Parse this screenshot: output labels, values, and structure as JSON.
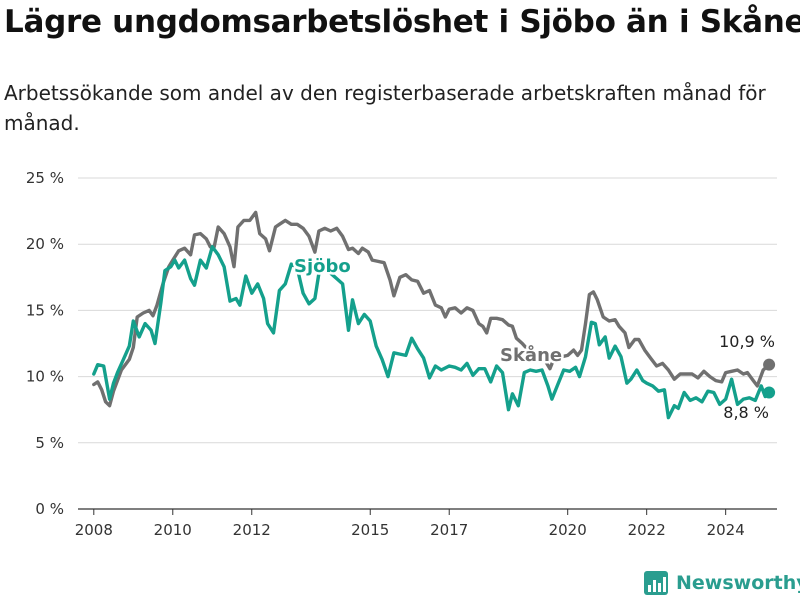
{
  "title": "Lägre ungdomsarbetslöshet i Sjöbo än i Skåne",
  "subtitle": "Arbetssökande som andel av den registerbaserade arbetskraften månad för månad.",
  "brand": "Newsworthy",
  "colors": {
    "skane": "#707070",
    "sjobo": "#14a08c",
    "grid": "#d9d9d9",
    "axis": "#333333"
  },
  "chart_data": {
    "type": "line",
    "title": "Lägre ungdomsarbetslöshet i Sjöbo än i Skåne",
    "xlabel": "",
    "ylabel": "",
    "xlim": [
      2007.6,
      2025.3
    ],
    "ylim": [
      0,
      25
    ],
    "y_ticks": [
      0,
      5,
      10,
      15,
      20,
      25
    ],
    "y_tick_labels": [
      "0 %",
      "5 %",
      "10 %",
      "15 %",
      "20 %",
      "25 %"
    ],
    "x_ticks": [
      2008,
      2010,
      2012,
      2015,
      2017,
      2020,
      2022,
      2024
    ],
    "x_tick_labels": [
      "2008",
      "2010",
      "2012",
      "2015",
      "2017",
      "2020",
      "2022",
      "2024"
    ],
    "grid": true,
    "series": [
      {
        "name": "Skåne",
        "label": "Skåne",
        "color": "#707070",
        "end_label": "10,9 %",
        "points": [
          [
            2008.0,
            9.4
          ],
          [
            2008.1,
            9.6
          ],
          [
            2008.2,
            9.0
          ],
          [
            2008.3,
            8.1
          ],
          [
            2008.4,
            7.8
          ],
          [
            2008.5,
            8.9
          ],
          [
            2008.7,
            10.5
          ],
          [
            2008.9,
            11.3
          ],
          [
            2009.0,
            12.2
          ],
          [
            2009.1,
            14.5
          ],
          [
            2009.25,
            14.8
          ],
          [
            2009.4,
            15.0
          ],
          [
            2009.5,
            14.6
          ],
          [
            2009.6,
            15.4
          ],
          [
            2009.75,
            17.0
          ],
          [
            2009.9,
            18.3
          ],
          [
            2010.0,
            18.8
          ],
          [
            2010.15,
            19.5
          ],
          [
            2010.3,
            19.7
          ],
          [
            2010.45,
            19.2
          ],
          [
            2010.55,
            20.7
          ],
          [
            2010.7,
            20.8
          ],
          [
            2010.85,
            20.4
          ],
          [
            2010.95,
            19.8
          ],
          [
            2011.05,
            19.8
          ],
          [
            2011.15,
            21.3
          ],
          [
            2011.3,
            20.8
          ],
          [
            2011.45,
            19.8
          ],
          [
            2011.55,
            18.3
          ],
          [
            2011.65,
            21.3
          ],
          [
            2011.8,
            21.8
          ],
          [
            2011.95,
            21.8
          ],
          [
            2012.1,
            22.4
          ],
          [
            2012.2,
            20.8
          ],
          [
            2012.35,
            20.4
          ],
          [
            2012.45,
            19.5
          ],
          [
            2012.6,
            21.3
          ],
          [
            2012.7,
            21.5
          ],
          [
            2012.85,
            21.8
          ],
          [
            2013.0,
            21.5
          ],
          [
            2013.15,
            21.5
          ],
          [
            2013.3,
            21.2
          ],
          [
            2013.45,
            20.6
          ],
          [
            2013.6,
            19.4
          ],
          [
            2013.7,
            21.0
          ],
          [
            2013.85,
            21.2
          ],
          [
            2014.0,
            21.0
          ],
          [
            2014.15,
            21.2
          ],
          [
            2014.3,
            20.6
          ],
          [
            2014.45,
            19.6
          ],
          [
            2014.55,
            19.7
          ],
          [
            2014.7,
            19.3
          ],
          [
            2014.8,
            19.7
          ],
          [
            2014.95,
            19.4
          ],
          [
            2015.05,
            18.8
          ],
          [
            2015.2,
            18.7
          ],
          [
            2015.35,
            18.6
          ],
          [
            2015.5,
            17.3
          ],
          [
            2015.6,
            16.1
          ],
          [
            2015.75,
            17.5
          ],
          [
            2015.9,
            17.7
          ],
          [
            2016.05,
            17.3
          ],
          [
            2016.2,
            17.2
          ],
          [
            2016.35,
            16.3
          ],
          [
            2016.5,
            16.5
          ],
          [
            2016.65,
            15.4
          ],
          [
            2016.8,
            15.2
          ],
          [
            2016.9,
            14.5
          ],
          [
            2017.0,
            15.1
          ],
          [
            2017.15,
            15.2
          ],
          [
            2017.3,
            14.8
          ],
          [
            2017.45,
            15.2
          ],
          [
            2017.6,
            15.0
          ],
          [
            2017.75,
            14.0
          ],
          [
            2017.85,
            13.8
          ],
          [
            2017.95,
            13.3
          ],
          [
            2018.05,
            14.4
          ],
          [
            2018.2,
            14.4
          ],
          [
            2018.35,
            14.3
          ],
          [
            2018.5,
            13.9
          ],
          [
            2018.6,
            13.8
          ],
          [
            2018.7,
            12.9
          ],
          [
            2018.85,
            12.5
          ],
          [
            2019.0,
            12.0
          ],
          [
            2019.15,
            11.6
          ],
          [
            2019.3,
            11.6
          ],
          [
            2019.45,
            11.1
          ],
          [
            2019.55,
            10.6
          ],
          [
            2019.7,
            11.7
          ],
          [
            2019.85,
            11.5
          ],
          [
            2020.0,
            11.6
          ],
          [
            2020.15,
            12.0
          ],
          [
            2020.25,
            11.6
          ],
          [
            2020.35,
            12.0
          ],
          [
            2020.45,
            14.0
          ],
          [
            2020.55,
            16.2
          ],
          [
            2020.65,
            16.4
          ],
          [
            2020.75,
            15.8
          ],
          [
            2020.9,
            14.5
          ],
          [
            2021.05,
            14.2
          ],
          [
            2021.2,
            14.3
          ],
          [
            2021.3,
            13.8
          ],
          [
            2021.45,
            13.3
          ],
          [
            2021.55,
            12.2
          ],
          [
            2021.7,
            12.8
          ],
          [
            2021.8,
            12.8
          ],
          [
            2021.95,
            12.0
          ],
          [
            2022.1,
            11.4
          ],
          [
            2022.25,
            10.8
          ],
          [
            2022.4,
            11.0
          ],
          [
            2022.55,
            10.5
          ],
          [
            2022.7,
            9.8
          ],
          [
            2022.85,
            10.2
          ],
          [
            2023.0,
            10.2
          ],
          [
            2023.15,
            10.2
          ],
          [
            2023.3,
            9.9
          ],
          [
            2023.45,
            10.4
          ],
          [
            2023.6,
            10.0
          ],
          [
            2023.75,
            9.7
          ],
          [
            2023.9,
            9.6
          ],
          [
            2024.0,
            10.3
          ],
          [
            2024.15,
            10.4
          ],
          [
            2024.3,
            10.5
          ],
          [
            2024.45,
            10.2
          ],
          [
            2024.55,
            10.3
          ],
          [
            2024.7,
            9.7
          ],
          [
            2024.8,
            9.3
          ],
          [
            2024.95,
            10.5
          ],
          [
            2025.1,
            10.9
          ]
        ]
      },
      {
        "name": "Sjöbo",
        "label": "Sjöbo",
        "color": "#14a08c",
        "end_label": "8,8 %",
        "points": [
          [
            2008.0,
            10.2
          ],
          [
            2008.1,
            10.9
          ],
          [
            2008.25,
            10.8
          ],
          [
            2008.4,
            8.3
          ],
          [
            2008.5,
            9.5
          ],
          [
            2008.6,
            10.3
          ],
          [
            2008.75,
            11.3
          ],
          [
            2008.9,
            12.3
          ],
          [
            2009.0,
            14.2
          ],
          [
            2009.15,
            13.0
          ],
          [
            2009.3,
            14.0
          ],
          [
            2009.45,
            13.5
          ],
          [
            2009.55,
            12.5
          ],
          [
            2009.7,
            15.6
          ],
          [
            2009.8,
            18.0
          ],
          [
            2009.95,
            18.3
          ],
          [
            2010.05,
            18.8
          ],
          [
            2010.15,
            18.2
          ],
          [
            2010.3,
            18.8
          ],
          [
            2010.45,
            17.4
          ],
          [
            2010.55,
            16.9
          ],
          [
            2010.7,
            18.8
          ],
          [
            2010.85,
            18.2
          ],
          [
            2011.0,
            19.8
          ],
          [
            2011.15,
            19.2
          ],
          [
            2011.3,
            18.3
          ],
          [
            2011.45,
            15.7
          ],
          [
            2011.6,
            15.9
          ],
          [
            2011.7,
            15.4
          ],
          [
            2011.85,
            17.6
          ],
          [
            2012.0,
            16.3
          ],
          [
            2012.15,
            17.0
          ],
          [
            2012.3,
            15.9
          ],
          [
            2012.4,
            14.0
          ],
          [
            2012.55,
            13.3
          ],
          [
            2012.7,
            16.5
          ],
          [
            2012.85,
            17.0
          ],
          [
            2013.0,
            18.5
          ],
          [
            2013.15,
            18.2
          ],
          [
            2013.3,
            16.3
          ],
          [
            2013.45,
            15.5
          ],
          [
            2013.6,
            15.9
          ],
          [
            2013.7,
            17.8
          ],
          [
            2013.85,
            18.2
          ],
          [
            2014.0,
            17.8
          ],
          [
            2014.15,
            17.4
          ],
          [
            2014.3,
            17.0
          ],
          [
            2014.45,
            13.5
          ],
          [
            2014.55,
            15.8
          ],
          [
            2014.7,
            14.0
          ],
          [
            2014.85,
            14.7
          ],
          [
            2015.0,
            14.2
          ],
          [
            2015.15,
            12.3
          ],
          [
            2015.3,
            11.3
          ],
          [
            2015.45,
            10.0
          ],
          [
            2015.6,
            11.8
          ],
          [
            2015.75,
            11.7
          ],
          [
            2015.9,
            11.6
          ],
          [
            2016.05,
            12.9
          ],
          [
            2016.2,
            12.1
          ],
          [
            2016.35,
            11.4
          ],
          [
            2016.5,
            9.9
          ],
          [
            2016.65,
            10.8
          ],
          [
            2016.8,
            10.5
          ],
          [
            2017.0,
            10.8
          ],
          [
            2017.15,
            10.7
          ],
          [
            2017.3,
            10.5
          ],
          [
            2017.45,
            11.0
          ],
          [
            2017.6,
            10.1
          ],
          [
            2017.75,
            10.6
          ],
          [
            2017.9,
            10.6
          ],
          [
            2018.05,
            9.6
          ],
          [
            2018.2,
            10.8
          ],
          [
            2018.35,
            10.3
          ],
          [
            2018.5,
            7.5
          ],
          [
            2018.6,
            8.7
          ],
          [
            2018.75,
            7.8
          ],
          [
            2018.9,
            10.3
          ],
          [
            2019.05,
            10.5
          ],
          [
            2019.2,
            10.4
          ],
          [
            2019.35,
            10.5
          ],
          [
            2019.5,
            9.3
          ],
          [
            2019.6,
            8.3
          ],
          [
            2019.75,
            9.4
          ],
          [
            2019.9,
            10.5
          ],
          [
            2020.05,
            10.4
          ],
          [
            2020.2,
            10.7
          ],
          [
            2020.3,
            10.0
          ],
          [
            2020.45,
            11.5
          ],
          [
            2020.6,
            14.1
          ],
          [
            2020.7,
            14.0
          ],
          [
            2020.8,
            12.4
          ],
          [
            2020.95,
            13.0
          ],
          [
            2021.05,
            11.4
          ],
          [
            2021.2,
            12.3
          ],
          [
            2021.35,
            11.5
          ],
          [
            2021.5,
            9.5
          ],
          [
            2021.6,
            9.8
          ],
          [
            2021.75,
            10.5
          ],
          [
            2021.9,
            9.7
          ],
          [
            2022.0,
            9.5
          ],
          [
            2022.15,
            9.3
          ],
          [
            2022.3,
            8.9
          ],
          [
            2022.45,
            9.0
          ],
          [
            2022.55,
            6.9
          ],
          [
            2022.7,
            7.8
          ],
          [
            2022.8,
            7.6
          ],
          [
            2022.95,
            8.8
          ],
          [
            2023.1,
            8.2
          ],
          [
            2023.25,
            8.4
          ],
          [
            2023.4,
            8.1
          ],
          [
            2023.55,
            8.9
          ],
          [
            2023.7,
            8.8
          ],
          [
            2023.85,
            7.9
          ],
          [
            2024.0,
            8.3
          ],
          [
            2024.15,
            9.8
          ],
          [
            2024.3,
            7.9
          ],
          [
            2024.45,
            8.3
          ],
          [
            2024.6,
            8.4
          ],
          [
            2024.75,
            8.2
          ],
          [
            2024.9,
            9.3
          ],
          [
            2025.0,
            8.5
          ],
          [
            2025.1,
            8.8
          ]
        ]
      }
    ]
  }
}
